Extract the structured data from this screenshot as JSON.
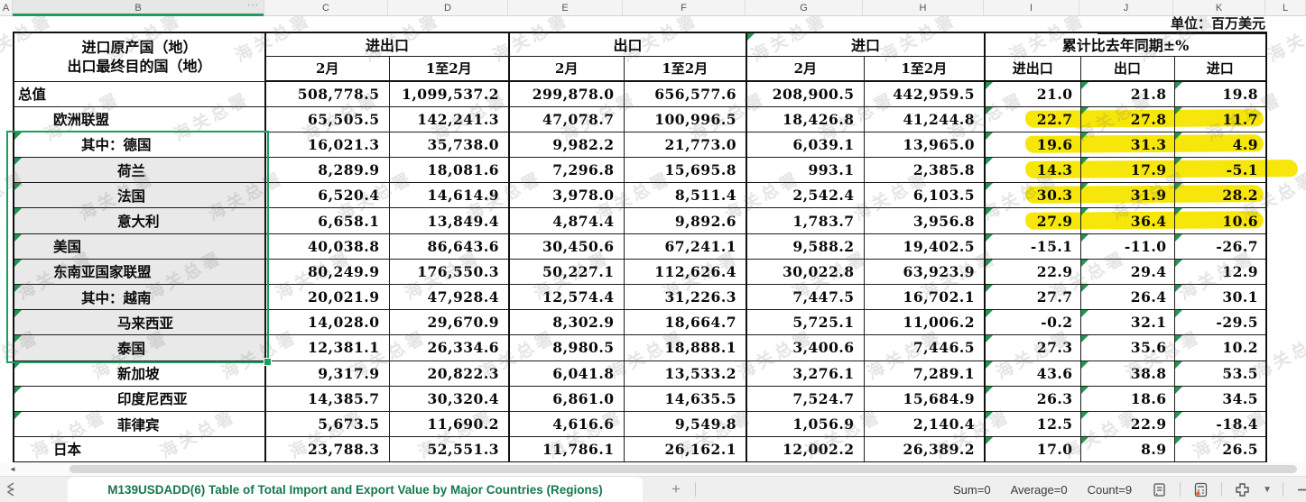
{
  "columns": [
    "A",
    "B",
    "C",
    "D",
    "E",
    "F",
    "G",
    "H",
    "I",
    "J",
    "K",
    "L"
  ],
  "column_menu_dots": "···",
  "unit_label": "单位：百万美元",
  "watermark": "海关总署",
  "colors": {
    "selection_green": "#1f9d61",
    "flag_triangle_green": "#219653",
    "highlight_yellow": "#f6e60a",
    "tab_text_green": "#17784d"
  },
  "table": {
    "header": {
      "label_line1": "进口原产国（地）",
      "label_line2": "出口最终目的国（地）",
      "groups": [
        "进出口",
        "出口",
        "进口",
        "累计比去年同期±%"
      ],
      "subheaders": [
        "2月",
        "1至2月",
        "2月",
        "1至2月",
        "2月",
        "1至2月",
        "进出口",
        "出口",
        "进口"
      ]
    },
    "rows": [
      {
        "label": "总值",
        "indent": 0,
        "values": [
          "508,778.5",
          "1,099,537.2",
          "299,878.0",
          "656,577.6",
          "208,900.5",
          "442,959.5",
          "21.0",
          "21.8",
          "19.8"
        ],
        "highlight": false,
        "selected": false,
        "active": false,
        "flag": false
      },
      {
        "label": "欧洲联盟",
        "indent": 1,
        "values": [
          "65,505.5",
          "142,241.3",
          "47,078.7",
          "100,996.5",
          "18,426.8",
          "41,244.8",
          "22.7",
          "27.8",
          "11.7"
        ],
        "highlight": true,
        "selected": false,
        "active": false,
        "flag": false
      },
      {
        "label": "其中：德国",
        "indent": 2,
        "values": [
          "16,021.3",
          "35,738.0",
          "9,982.2",
          "21,773.0",
          "6,039.1",
          "13,965.0",
          "19.6",
          "31.3",
          "4.9"
        ],
        "highlight": true,
        "selected": true,
        "active": true,
        "flag": true
      },
      {
        "label": "荷兰",
        "indent": 3,
        "values": [
          "8,289.9",
          "18,081.6",
          "7,296.8",
          "15,695.8",
          "993.1",
          "2,385.8",
          "14.3",
          "17.9",
          "-5.1"
        ],
        "highlight": true,
        "highlight_extend": true,
        "selected": true,
        "active": false,
        "flag": true
      },
      {
        "label": "法国",
        "indent": 3,
        "values": [
          "6,520.4",
          "14,614.9",
          "3,978.0",
          "8,511.4",
          "2,542.4",
          "6,103.5",
          "30.3",
          "31.9",
          "28.2"
        ],
        "highlight": true,
        "selected": true,
        "active": false,
        "flag": true
      },
      {
        "label": "意大利",
        "indent": 3,
        "values": [
          "6,658.1",
          "13,849.4",
          "4,874.4",
          "9,892.6",
          "1,783.7",
          "3,956.8",
          "27.9",
          "36.4",
          "10.6"
        ],
        "highlight": true,
        "selected": true,
        "active": false,
        "flag": true
      },
      {
        "label": "美国",
        "indent": 1,
        "values": [
          "40,038.8",
          "86,643.6",
          "30,450.6",
          "67,241.1",
          "9,588.2",
          "19,402.5",
          "-15.1",
          "-11.0",
          "-26.7"
        ],
        "highlight": false,
        "selected": true,
        "active": false,
        "flag": true
      },
      {
        "label": "东南亚国家联盟",
        "indent": 1,
        "values": [
          "80,249.9",
          "176,550.3",
          "50,227.1",
          "112,626.4",
          "30,022.8",
          "63,923.9",
          "22.9",
          "29.4",
          "12.9"
        ],
        "highlight": false,
        "selected": true,
        "active": false,
        "flag": true
      },
      {
        "label": "其中：越南",
        "indent": 2,
        "values": [
          "20,021.9",
          "47,928.4",
          "12,574.4",
          "31,226.3",
          "7,447.5",
          "16,702.1",
          "27.7",
          "26.4",
          "30.1"
        ],
        "highlight": false,
        "selected": true,
        "active": false,
        "flag": true
      },
      {
        "label": "马来西亚",
        "indent": 3,
        "values": [
          "14,028.0",
          "29,670.9",
          "8,302.9",
          "18,664.7",
          "5,725.1",
          "11,006.2",
          "-0.2",
          "32.1",
          "-29.5"
        ],
        "highlight": false,
        "selected": true,
        "active": false,
        "flag": true
      },
      {
        "label": "泰国",
        "indent": 3,
        "values": [
          "12,381.1",
          "26,334.6",
          "8,980.5",
          "18,888.1",
          "3,400.6",
          "7,446.5",
          "27.3",
          "35.6",
          "10.2"
        ],
        "highlight": false,
        "selected": true,
        "active": false,
        "flag": true
      },
      {
        "label": "新加坡",
        "indent": 3,
        "values": [
          "9,317.9",
          "20,822.3",
          "6,041.8",
          "13,533.2",
          "3,276.1",
          "7,289.1",
          "43.6",
          "38.8",
          "53.5"
        ],
        "highlight": false,
        "selected": false,
        "active": false,
        "flag": true
      },
      {
        "label": "印度尼西亚",
        "indent": 3,
        "values": [
          "14,385.7",
          "30,320.4",
          "6,861.0",
          "14,635.5",
          "7,524.7",
          "15,684.9",
          "26.3",
          "18.6",
          "34.5"
        ],
        "highlight": false,
        "selected": false,
        "active": false,
        "flag": true
      },
      {
        "label": "菲律宾",
        "indent": 3,
        "values": [
          "5,673.5",
          "11,690.2",
          "4,616.6",
          "9,549.8",
          "1,056.9",
          "2,140.4",
          "12.5",
          "22.9",
          "-18.4"
        ],
        "highlight": false,
        "selected": false,
        "active": false,
        "flag": true
      },
      {
        "label": "日本",
        "indent": 1,
        "values": [
          "23,788.3",
          "52,551.3",
          "11,786.1",
          "26,162.1",
          "12,002.2",
          "26,389.2",
          "17.0",
          "8.9",
          "26.5"
        ],
        "highlight": false,
        "selected": false,
        "active": false,
        "flag": false
      }
    ]
  },
  "sheet_bar": {
    "tab_label": "M139USDADD(6) Table of Total Import and Export Value by Major Countries (Regions)",
    "add_button": "+",
    "icons": [
      "sheet-nav-icon"
    ]
  },
  "status_bar": {
    "sum": "Sum=0",
    "average": "Average=0",
    "count": "Count=9",
    "icons": [
      "status-list-icon",
      "calculator-icon",
      "table-tools-icon",
      "chevron-down-icon",
      "zoom-out-icon"
    ]
  },
  "scrollbar": {
    "icons": [
      "scroll-left-arrow-icon"
    ]
  }
}
